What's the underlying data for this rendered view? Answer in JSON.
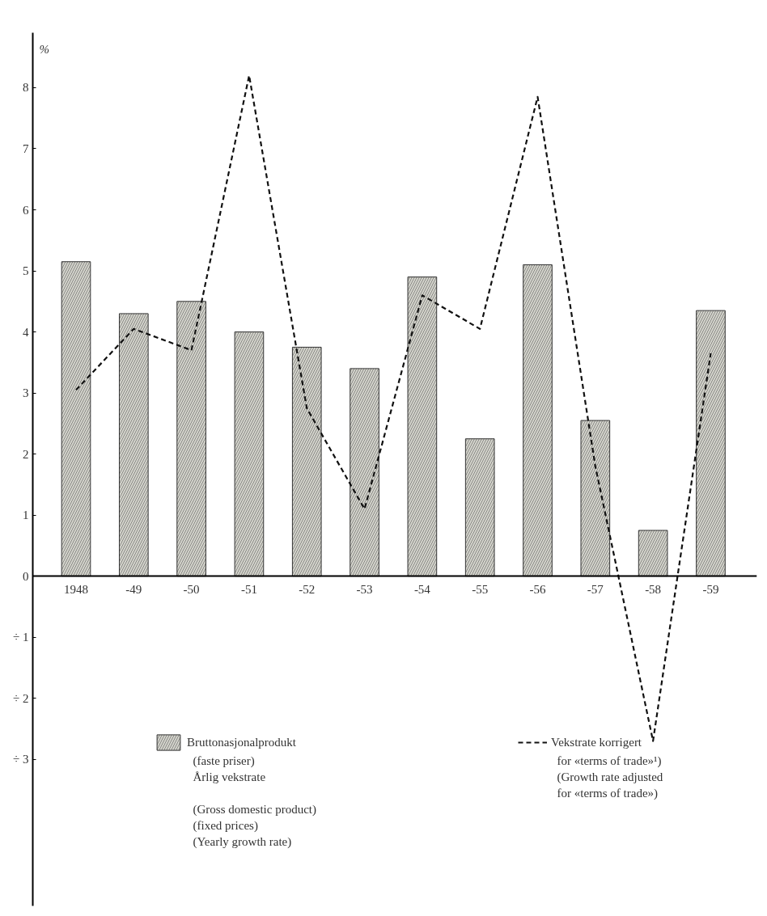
{
  "chart_data": {
    "type": "bar",
    "ylabel": "%",
    "categories": [
      "1948",
      "-49",
      "-50",
      "-51",
      "-52",
      "-53",
      "-54",
      "-55",
      "-56",
      "-57",
      "-58",
      "-59"
    ],
    "series": [
      {
        "name": "Bruttonasjonalprodukt",
        "color": "#d4d4cc",
        "values": [
          5.15,
          4.3,
          4.5,
          4.0,
          3.75,
          3.4,
          4.9,
          2.25,
          5.1,
          2.55,
          0.75,
          4.35
        ]
      },
      {
        "name": "Vekstrate korrigert",
        "type": "line",
        "line_style": "dashed",
        "color": "#111111",
        "values": [
          3.05,
          4.05,
          3.7,
          8.2,
          2.75,
          1.1,
          4.6,
          4.05,
          7.85,
          1.8,
          -2.7,
          3.65
        ]
      }
    ],
    "annotations": [
      "(faste priser)\nÅrlig vekstrate\n\n(Gross domestic product)\n(fixed prices)\n(Yearly growth rate)",
      "for «terms of trade»¹)\n(Growth rate adjusted\nfor «terms of trade»)"
    ],
    "ylim": [
      -5.4,
      8.9
    ],
    "yticks": [
      {
        "value": -3,
        "label": "÷ 3"
      },
      {
        "value": -2,
        "label": "÷ 2"
      },
      {
        "value": -1,
        "label": "÷ 1"
      },
      0,
      1,
      2,
      3,
      4,
      5,
      6,
      7,
      8
    ],
    "legend": "bottom"
  }
}
